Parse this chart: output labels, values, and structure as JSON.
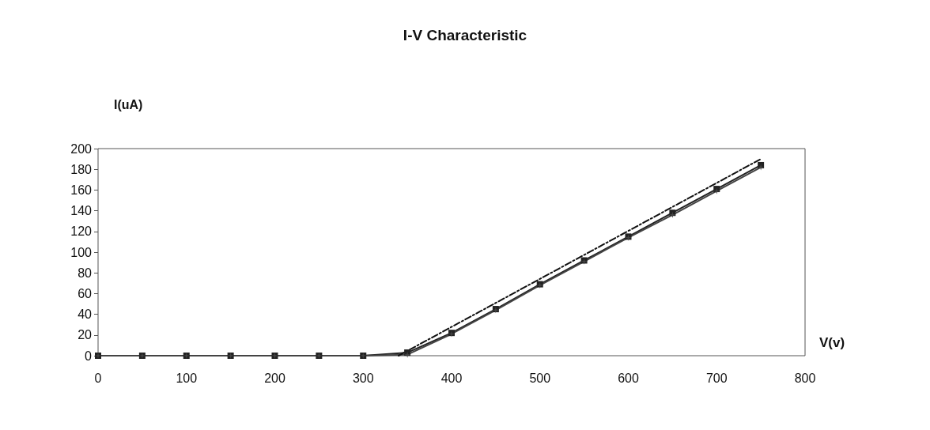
{
  "chart_data": {
    "type": "line",
    "title": "I-V Characteristic",
    "xlabel": "V(v)",
    "ylabel": "I(uA)",
    "xlim": [
      0,
      800
    ],
    "xticks": [
      0,
      100,
      200,
      300,
      400,
      500,
      600,
      700,
      800
    ],
    "ylim": [
      0,
      200
    ],
    "yticks": [
      0,
      20,
      40,
      60,
      80,
      100,
      120,
      140,
      160,
      180,
      200
    ],
    "grid": false,
    "series": [
      {
        "color": "#222222",
        "marker": "square",
        "line_style": "solid",
        "x": [
          0,
          50,
          100,
          150,
          200,
          250,
          300,
          350,
          400,
          450,
          500,
          550,
          600,
          650,
          700,
          750
        ],
        "values": [
          0,
          0,
          0,
          0,
          0,
          0,
          0,
          3,
          22,
          45,
          69,
          92,
          115,
          138,
          161,
          184
        ]
      },
      {
        "color": "#444444",
        "marker": "star",
        "line_style": "solid",
        "x": [
          0,
          50,
          100,
          150,
          200,
          250,
          300,
          350,
          400,
          450,
          500,
          550,
          600,
          650,
          700,
          750
        ],
        "values": [
          0,
          0,
          0,
          0,
          0,
          0,
          0,
          1,
          21,
          44,
          68,
          91,
          114,
          136,
          159,
          182
        ]
      },
      {
        "color": "#111111",
        "marker": "none",
        "line_style": "dashed",
        "x": [
          340,
          750
        ],
        "values": [
          0,
          190
        ]
      }
    ]
  }
}
